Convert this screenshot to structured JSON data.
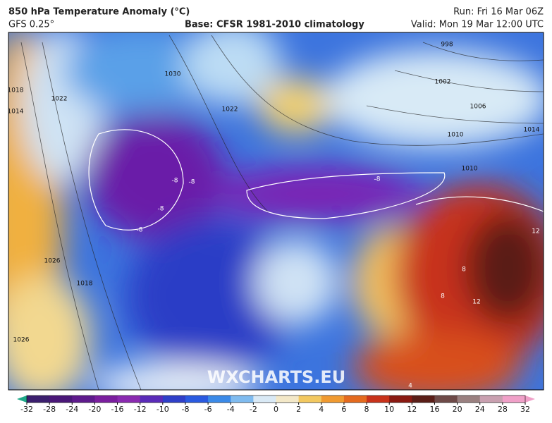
{
  "header": {
    "title": "850 hPa Temperature Anomaly (°C)",
    "model": "GFS 0.25°",
    "base": "Base: CFSR 1981-2010 climatology",
    "run": "Run: Fri 16 Mar 06Z",
    "valid": "Valid: Mon 19 Mar 12:00 UTC"
  },
  "watermark": "WXCHARTS.EU",
  "isobar_labels": [
    "1018",
    "1014",
    "1026",
    "1030",
    "1022",
    "1022",
    "1018",
    "1026",
    "998",
    "1002",
    "1006",
    "1010",
    "1014",
    "1010"
  ],
  "anomaly_labels": [
    "-8",
    "-8",
    "-8",
    "-8",
    "-8",
    "8",
    "8",
    "12",
    "12",
    "4"
  ],
  "colorbar": {
    "ticks": [
      -32,
      -28,
      -24,
      -20,
      -16,
      -12,
      -10,
      -8,
      -6,
      -4,
      -2,
      0,
      2,
      4,
      6,
      8,
      10,
      12,
      16,
      20,
      24,
      28,
      32
    ],
    "colors": [
      "#1fa98a",
      "#3b1f6e",
      "#4a1778",
      "#5e1a8c",
      "#7a1e9e",
      "#8a2ab0",
      "#5a2bb8",
      "#2f3fc8",
      "#2a5ae0",
      "#3b8ae8",
      "#7fbbef",
      "#d9e9f5",
      "#f3e8c8",
      "#f2c860",
      "#f09a30",
      "#e46a1e",
      "#c8321a",
      "#8a1a12",
      "#5a1e18",
      "#6e4a48",
      "#9a8080",
      "#c9a0b0",
      "#f0a0c8"
    ]
  }
}
